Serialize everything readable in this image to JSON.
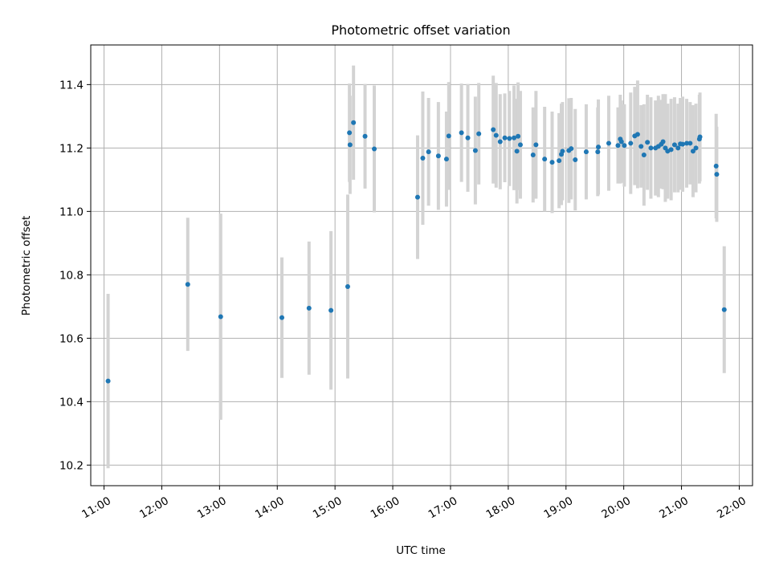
{
  "chart_data": {
    "type": "scatter",
    "title": "Photometric offset variation",
    "xlabel": "UTC time",
    "ylabel": "Photometric offset",
    "x_unit": "hours UTC",
    "xlim": [
      10.77,
      22.23
    ],
    "ylim": [
      10.135,
      11.525
    ],
    "x_ticks": [
      11,
      12,
      13,
      14,
      15,
      16,
      17,
      18,
      19,
      20,
      21,
      22
    ],
    "x_tick_labels": [
      "11:00",
      "12:00",
      "13:00",
      "14:00",
      "15:00",
      "16:00",
      "17:00",
      "18:00",
      "19:00",
      "20:00",
      "21:00",
      "22:00"
    ],
    "y_ticks": [
      10.2,
      10.4,
      10.6,
      10.8,
      11.0,
      11.2,
      11.4
    ],
    "y_tick_labels": [
      "10.2",
      "10.4",
      "10.6",
      "10.8",
      "11.0",
      "11.2",
      "11.4"
    ],
    "grid": true,
    "colors": {
      "points": "#1f77b4",
      "errorbars": "#d3d3d3",
      "grid": "#b0b0b0"
    },
    "series": [
      {
        "x": [
          11.07,
          12.45,
          13.02,
          14.08,
          14.55,
          14.93,
          15.22,
          15.25,
          15.26,
          15.32,
          15.52,
          15.68,
          16.43,
          16.52,
          16.62,
          16.79,
          16.93,
          16.97,
          17.19,
          17.3,
          17.43,
          17.49,
          17.74,
          17.79,
          17.86,
          17.94,
          18.02,
          18.1,
          18.15,
          18.17,
          18.21,
          18.43,
          18.48,
          18.63,
          18.76,
          18.88,
          18.92,
          18.94,
          19.05,
          19.09,
          19.16,
          19.35,
          19.55,
          19.56,
          19.74,
          19.9,
          19.94,
          19.96,
          20.01,
          20.12,
          20.19,
          20.24,
          20.3,
          20.35,
          20.41,
          20.47,
          20.55,
          20.6,
          20.65,
          20.68,
          20.72,
          20.76,
          20.82,
          20.88,
          20.94,
          20.98,
          21.02,
          21.09,
          21.15,
          21.2,
          21.25,
          21.31,
          21.32,
          21.6,
          21.61,
          21.74
        ],
        "y": [
          10.465,
          10.77,
          10.668,
          10.665,
          10.695,
          10.688,
          10.763,
          11.248,
          11.21,
          11.28,
          11.237,
          11.197,
          11.045,
          11.168,
          11.188,
          11.175,
          11.165,
          11.238,
          11.248,
          11.232,
          11.192,
          11.245,
          11.258,
          11.24,
          11.22,
          11.232,
          11.23,
          11.232,
          11.19,
          11.237,
          11.21,
          11.178,
          11.21,
          11.165,
          11.155,
          11.16,
          11.18,
          11.19,
          11.192,
          11.198,
          11.163,
          11.188,
          11.188,
          11.203,
          11.215,
          11.208,
          11.228,
          11.22,
          11.208,
          11.215,
          11.238,
          11.243,
          11.205,
          11.178,
          11.218,
          11.2,
          11.2,
          11.205,
          11.212,
          11.22,
          11.2,
          11.19,
          11.195,
          11.21,
          11.2,
          11.213,
          11.212,
          11.215,
          11.215,
          11.19,
          11.2,
          11.228,
          11.235,
          11.143,
          11.117,
          10.69
        ],
        "err": [
          0.275,
          0.21,
          0.325,
          0.19,
          0.21,
          0.25,
          0.29,
          0.155,
          0.155,
          0.18,
          0.165,
          0.2,
          0.195,
          0.21,
          0.17,
          0.17,
          0.15,
          0.17,
          0.155,
          0.17,
          0.17,
          0.16,
          0.17,
          0.165,
          0.15,
          0.14,
          0.15,
          0.165,
          0.165,
          0.17,
          0.17,
          0.15,
          0.17,
          0.165,
          0.16,
          0.15,
          0.16,
          0.155,
          0.165,
          0.16,
          0.16,
          0.15,
          0.14,
          0.15,
          0.15,
          0.12,
          0.14,
          0.13,
          0.13,
          0.16,
          0.155,
          0.17,
          0.13,
          0.16,
          0.15,
          0.16,
          0.15,
          0.16,
          0.14,
          0.15,
          0.17,
          0.15,
          0.16,
          0.15,
          0.14,
          0.145,
          0.15,
          0.14,
          0.13,
          0.145,
          0.14,
          0.14,
          0.14,
          0.165,
          0.15,
          0.2
        ]
      }
    ]
  }
}
